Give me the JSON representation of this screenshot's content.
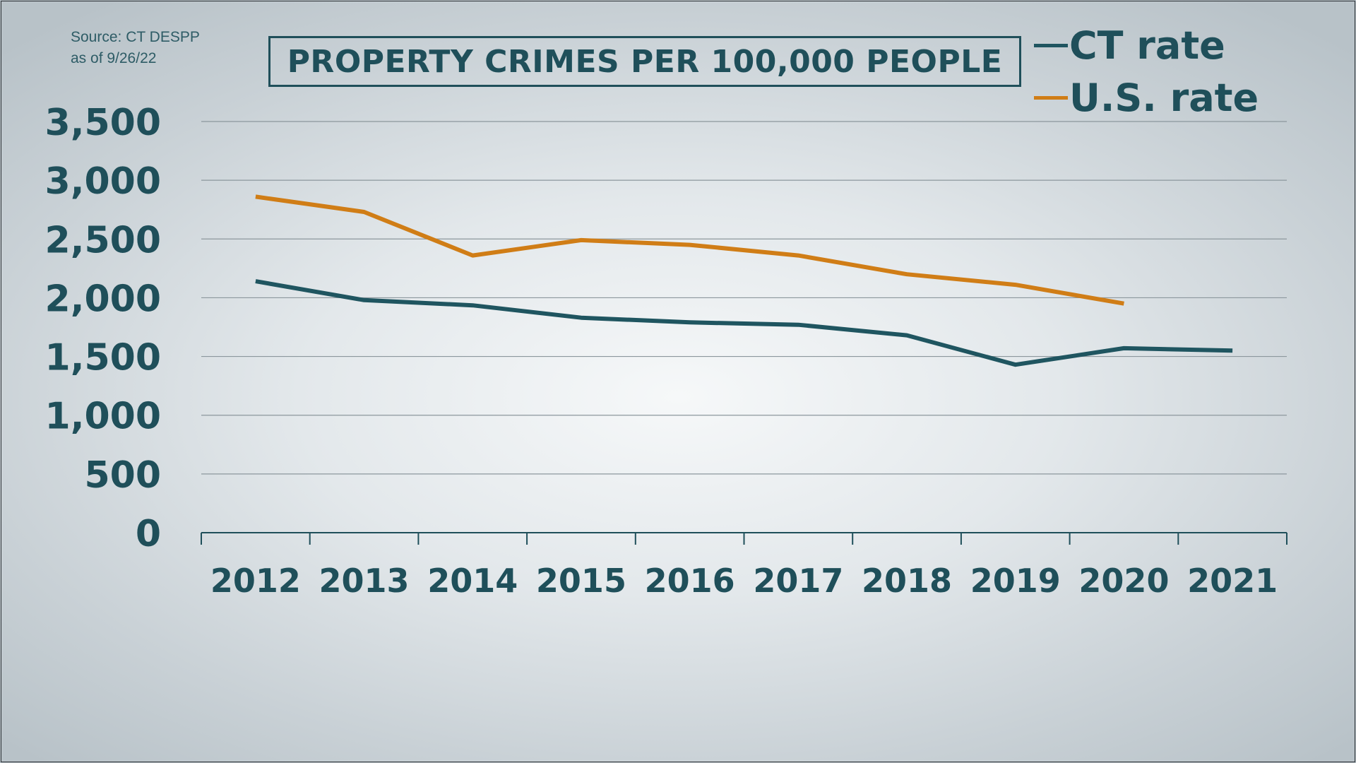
{
  "source": {
    "line1": "Source: CT DESPP",
    "line2": "as of 9/26/22"
  },
  "colors": {
    "ct": "#1f5560",
    "us": "#d07d16",
    "gridline": "#8c979d",
    "axis": "#1f4f5a"
  },
  "chart_data": {
    "type": "line",
    "title": "PROPERTY CRIMES PER 100,000 PEOPLE",
    "xlabel": "",
    "ylabel": "",
    "categories": [
      "2012",
      "2013",
      "2014",
      "2015",
      "2016",
      "2017",
      "2018",
      "2019",
      "2020",
      "2021"
    ],
    "ylim": [
      0,
      3500
    ],
    "yticks": [
      {
        "value": 0,
        "label": "0"
      },
      {
        "value": 500,
        "label": "500"
      },
      {
        "value": 1000,
        "label": "1,000"
      },
      {
        "value": 1500,
        "label": "1,500"
      },
      {
        "value": 2000,
        "label": "2,000"
      },
      {
        "value": 2500,
        "label": "2,500"
      },
      {
        "value": 3000,
        "label": "3,000"
      },
      {
        "value": 3500,
        "label": "3,500"
      }
    ],
    "grid": true,
    "legend_position": "top-right",
    "series": [
      {
        "name": "CT rate",
        "values": [
          2140,
          1980,
          1935,
          1830,
          1790,
          1770,
          1680,
          1430,
          1570,
          1550
        ]
      },
      {
        "name": "U.S. rate",
        "values": [
          2860,
          2730,
          2360,
          2490,
          2450,
          2360,
          2200,
          2110,
          1950,
          null
        ]
      }
    ]
  }
}
